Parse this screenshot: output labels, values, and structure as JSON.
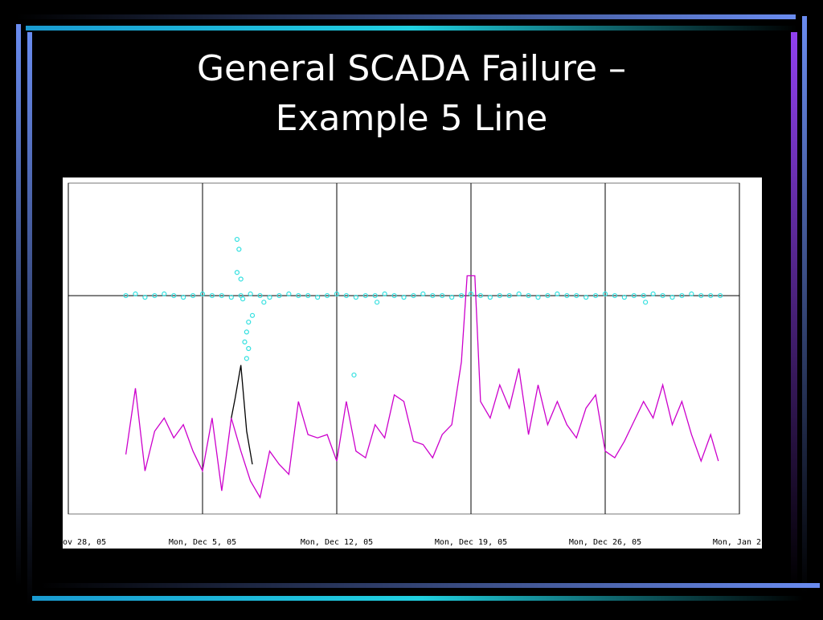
{
  "chart_data": {
    "type": "line",
    "title": [
      "General SCADA Failure –",
      "Example 5 Line"
    ],
    "xlim": [
      0,
      35
    ],
    "ylim": [
      0,
      100
    ],
    "grid": true,
    "hline": 66,
    "xticks": [
      {
        "value": 0,
        "label": "ov 28, 05"
      },
      {
        "value": 7,
        "label": "Mon, Dec 5, 05"
      },
      {
        "value": 14,
        "label": "Mon, Dec 12, 05"
      },
      {
        "value": 21,
        "label": "Mon, Dec 19, 05"
      },
      {
        "value": 28,
        "label": "Mon, Dec 26, 05"
      },
      {
        "value": 35,
        "label": "Mon, Jan 2,"
      }
    ],
    "series": [
      {
        "color": "#cc00cc",
        "style": "line",
        "x": [
          3,
          3.5,
          4,
          4.5,
          5,
          5.5,
          6,
          6.5,
          7,
          7.5,
          8,
          8.5,
          9,
          9.5,
          10,
          10.5,
          11,
          11.5,
          12,
          12.5,
          13,
          13.5,
          14,
          14.5,
          15,
          15.5,
          16,
          16.5,
          17,
          17.5,
          18,
          18.5,
          19,
          19.5,
          20,
          20.5,
          20.8,
          21.2,
          21.5,
          22,
          22.5,
          23,
          23.5,
          24,
          24.5,
          25,
          25.5,
          26,
          26.5,
          27,
          27.5,
          28,
          28.5,
          29,
          29.5,
          30,
          30.5,
          31,
          31.5,
          32,
          32.5,
          33,
          33.5,
          33.9
        ],
        "values": [
          18,
          38,
          13,
          25,
          29,
          23,
          27,
          19,
          13,
          29,
          7,
          29,
          19,
          10,
          5,
          19,
          15,
          12,
          34,
          24,
          23,
          24,
          16,
          34,
          19,
          17,
          27,
          23,
          36,
          34,
          22,
          21,
          17,
          24,
          27,
          46,
          72,
          72,
          34,
          29,
          39,
          32,
          44,
          24,
          39,
          27,
          34,
          27,
          23,
          32,
          36,
          19,
          17,
          22,
          28,
          34,
          29,
          39,
          27,
          34,
          24,
          16,
          24,
          16
        ]
      },
      {
        "color": "#000000",
        "style": "line",
        "x": [
          8.5,
          8.7,
          9,
          9.3,
          9.6
        ],
        "values": [
          29,
          35,
          45,
          25,
          15
        ]
      },
      {
        "color": "#33e0e0",
        "style": "points",
        "x": [
          3,
          3.5,
          4,
          4.5,
          5,
          5.5,
          6,
          6.5,
          7,
          7.5,
          8,
          8.5,
          9,
          9.5,
          10,
          10.5,
          11,
          11.5,
          12,
          12.5,
          13,
          13.5,
          14,
          14.5,
          15,
          15.5,
          16,
          16.5,
          17,
          17.5,
          18,
          18.5,
          19,
          19.5,
          20,
          20.5,
          21,
          21.5,
          22,
          22.5,
          23,
          23.5,
          24,
          24.5,
          25,
          25.5,
          26,
          26.5,
          27,
          27.5,
          28,
          28.5,
          29,
          29.5,
          30,
          30.5,
          31,
          31.5,
          32,
          32.5,
          33,
          33.5,
          34,
          8.8,
          8.9,
          8.8,
          9,
          9.1,
          9.4,
          9.3,
          9.2,
          9.4,
          9.3,
          9.6,
          10.2,
          14.9,
          16.1,
          30.1
        ],
        "values": [
          66,
          66.5,
          65.5,
          66,
          66.5,
          66,
          65.5,
          66,
          66.5,
          66,
          66,
          65.5,
          66,
          66.5,
          66,
          65.5,
          66,
          66.5,
          66,
          66,
          65.5,
          66,
          66.5,
          66,
          65.5,
          66,
          66,
          66.5,
          66,
          65.5,
          66,
          66.5,
          66,
          66,
          65.5,
          66,
          66.5,
          66,
          65.5,
          66,
          66,
          66.5,
          66,
          65.5,
          66,
          66.5,
          66,
          66,
          65.5,
          66,
          66.5,
          66,
          65.5,
          66,
          66,
          66.5,
          66,
          65.5,
          66,
          66.5,
          66,
          66,
          66,
          83,
          80,
          73,
          71,
          65,
          58,
          55,
          52,
          50,
          47,
          60,
          64,
          42,
          64,
          64
        ]
      }
    ]
  }
}
